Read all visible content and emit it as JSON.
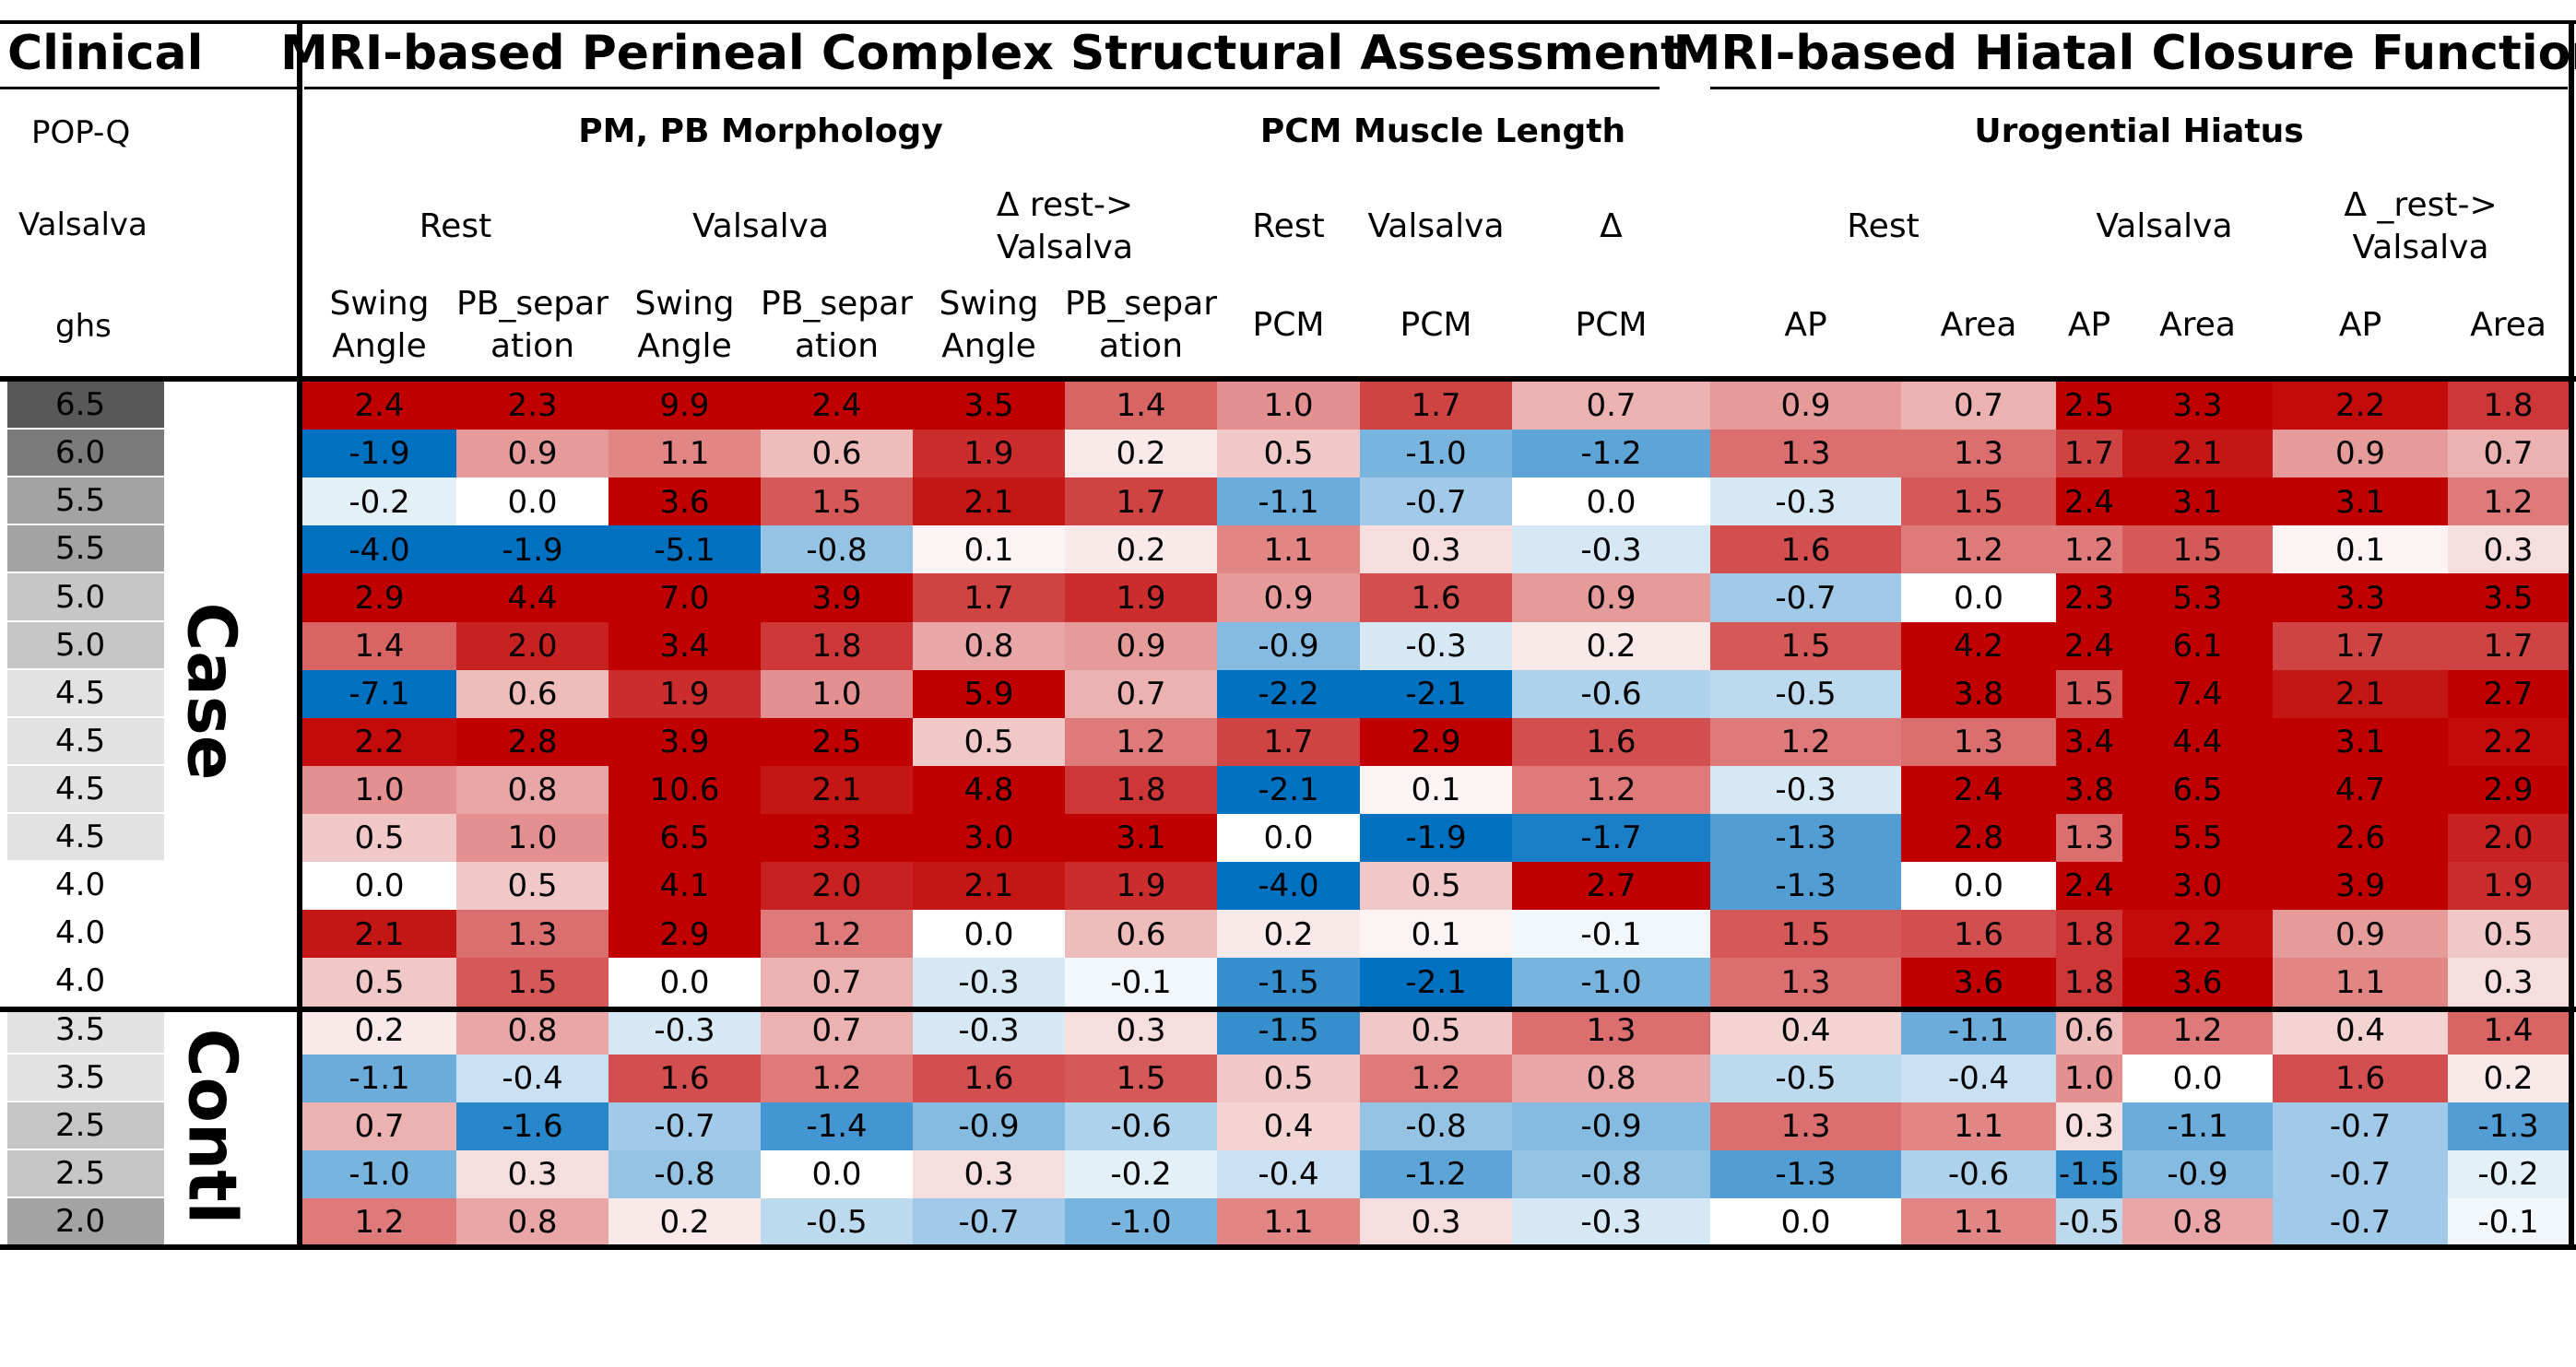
{
  "headers": {
    "clinical": "Clinical",
    "structural": "MRI-based  Perineal Complex Structural Assessment",
    "hiatal": "MRI-based Hiatal Closure Function",
    "popq": "POP-Q",
    "valsalva": "Valsalva",
    "ghs": "ghs",
    "pm_pb": "PM, PB Morphology",
    "pcm_length": "PCM Muscle Length",
    "ug_hiatus": "Urogential Hiatus"
  },
  "subheaders": [
    {
      "text": "Rest"
    },
    {
      "text": "Valsalva"
    },
    {
      "text": "Δ rest->\nValsalva"
    },
    {
      "text": "Rest"
    },
    {
      "text": "Valsalva"
    },
    {
      "text": "Δ"
    },
    {
      "text": "Rest"
    },
    {
      "text": "Valsalva"
    },
    {
      "text": "Δ _rest->\nValsalva"
    }
  ],
  "columns": [
    "Swing\nAngle",
    "PB_separ\nation",
    "Swing\nAngle",
    "PB_separ\nation",
    "Swing\nAngle",
    "PB_separ\nation",
    "PCM",
    "PCM",
    "PCM",
    "AP",
    "Area",
    "AP",
    "Area",
    "AP",
    "Area"
  ],
  "groups": {
    "case": "Case",
    "control": "Contl"
  },
  "chart_data": {
    "type": "heatmap",
    "row_labels": [
      "6.5",
      "6.0",
      "5.5",
      "5.5",
      "5.0",
      "5.0",
      "4.5",
      "4.5",
      "4.5",
      "4.5",
      "4.0",
      "4.0",
      "4.0",
      "3.5",
      "3.5",
      "2.5",
      "2.5",
      "2.0"
    ],
    "row_groups": [
      "Case",
      "Case",
      "Case",
      "Case",
      "Case",
      "Case",
      "Case",
      "Case",
      "Case",
      "Case",
      "Case",
      "Case",
      "Case",
      "Contl",
      "Contl",
      "Contl",
      "Contl",
      "Contl"
    ],
    "values": [
      [
        2.4,
        2.3,
        9.9,
        2.4,
        3.5,
        1.4,
        1.0,
        1.7,
        0.7,
        0.9,
        0.7,
        2.5,
        3.3,
        2.2,
        1.8
      ],
      [
        -1.9,
        0.9,
        1.1,
        0.6,
        1.9,
        0.2,
        0.5,
        -1.0,
        -1.2,
        1.3,
        1.3,
        1.7,
        2.1,
        0.9,
        0.7
      ],
      [
        -0.2,
        0.0,
        3.6,
        1.5,
        2.1,
        1.7,
        -1.1,
        -0.7,
        0.0,
        -0.3,
        1.5,
        2.4,
        3.1,
        3.1,
        1.2
      ],
      [
        -4.0,
        -1.9,
        -5.1,
        -0.8,
        0.1,
        0.2,
        1.1,
        0.3,
        -0.3,
        1.6,
        1.2,
        1.2,
        1.5,
        0.1,
        0.3
      ],
      [
        2.9,
        4.4,
        7.0,
        3.9,
        1.7,
        1.9,
        0.9,
        1.6,
        0.9,
        -0.7,
        0.0,
        2.3,
        5.3,
        3.3,
        3.5
      ],
      [
        1.4,
        2.0,
        3.4,
        1.8,
        0.8,
        0.9,
        -0.9,
        -0.3,
        0.2,
        1.5,
        4.2,
        2.4,
        6.1,
        1.7,
        1.7
      ],
      [
        -7.1,
        0.6,
        1.9,
        1.0,
        5.9,
        0.7,
        -2.2,
        -2.1,
        -0.6,
        -0.5,
        3.8,
        1.5,
        7.4,
        2.1,
        2.7
      ],
      [
        2.2,
        2.8,
        3.9,
        2.5,
        0.5,
        1.2,
        1.7,
        2.9,
        1.6,
        1.2,
        1.3,
        3.4,
        4.4,
        3.1,
        2.2
      ],
      [
        1.0,
        0.8,
        10.6,
        2.1,
        4.8,
        1.8,
        -2.1,
        0.1,
        1.2,
        -0.3,
        2.4,
        3.8,
        6.5,
        4.7,
        2.9
      ],
      [
        0.5,
        1.0,
        6.5,
        3.3,
        3.0,
        3.1,
        0.0,
        -1.9,
        -1.7,
        -1.3,
        2.8,
        1.3,
        5.5,
        2.6,
        2.0
      ],
      [
        0.0,
        0.5,
        4.1,
        2.0,
        2.1,
        1.9,
        -4.0,
        0.5,
        2.7,
        -1.3,
        0.0,
        2.4,
        3.0,
        3.9,
        1.9
      ],
      [
        2.1,
        1.3,
        2.9,
        1.2,
        0.0,
        0.6,
        0.2,
        0.1,
        -0.1,
        1.5,
        1.6,
        1.8,
        2.2,
        0.9,
        0.5
      ],
      [
        0.5,
        1.5,
        0.0,
        0.7,
        -0.3,
        -0.1,
        -1.5,
        -2.1,
        -1.0,
        1.3,
        3.6,
        1.8,
        3.6,
        1.1,
        0.3
      ],
      [
        0.2,
        0.8,
        -0.3,
        0.7,
        -0.3,
        0.3,
        -1.5,
        0.5,
        1.3,
        0.4,
        -1.1,
        0.6,
        1.2,
        0.4,
        1.4
      ],
      [
        -1.1,
        -0.4,
        1.6,
        1.2,
        1.6,
        1.5,
        0.5,
        1.2,
        0.8,
        -0.5,
        -0.4,
        1.0,
        0.0,
        1.6,
        0.2
      ],
      [
        0.7,
        -1.6,
        -0.7,
        -1.4,
        -0.9,
        -0.6,
        0.4,
        -0.8,
        -0.9,
        1.3,
        1.1,
        0.3,
        -1.1,
        -0.7,
        -1.3
      ],
      [
        -1.0,
        0.3,
        -0.8,
        0.0,
        0.3,
        -0.2,
        -0.4,
        -1.2,
        -0.8,
        -1.3,
        -0.6,
        -1.5,
        -0.9,
        -0.7,
        -0.2
      ],
      [
        1.2,
        0.8,
        0.2,
        -0.5,
        -0.7,
        -1.0,
        1.1,
        0.3,
        -0.3,
        0.0,
        1.1,
        -0.5,
        0.8,
        -0.7,
        -0.1
      ]
    ],
    "colors": {
      "positive": "#c00000",
      "neutral": "#ffffff",
      "negative": "#0070c0"
    }
  }
}
